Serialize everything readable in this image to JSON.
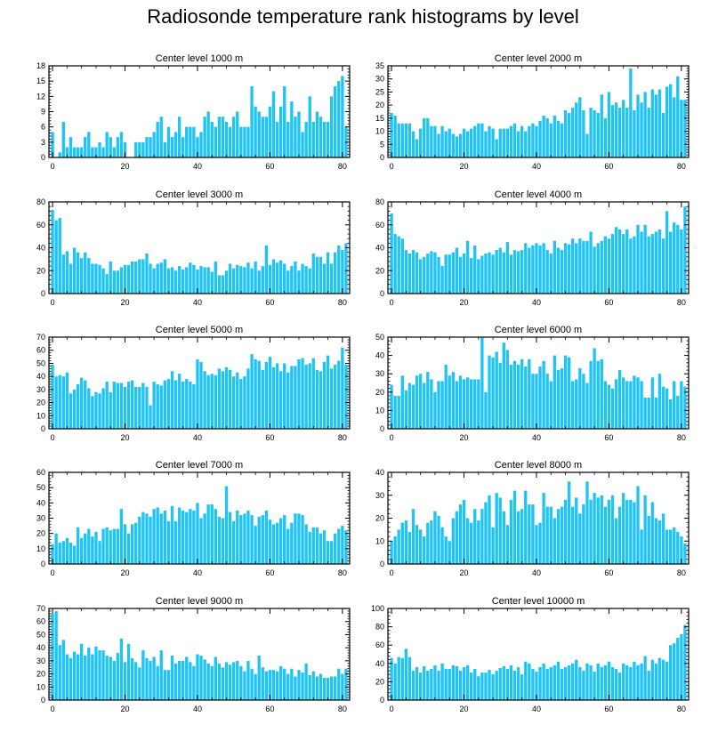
{
  "page_title": "Radiosonde temperature rank histograms by level",
  "colors": {
    "bar": "#1FC3F5",
    "axis": "#000000"
  },
  "chart_data": [
    {
      "type": "bar",
      "title": "Center level 1000 m",
      "xlim": [
        -1,
        82
      ],
      "ylim": [
        0,
        18
      ],
      "xticks": [
        0,
        20,
        40,
        60,
        80
      ],
      "yticks": [
        0,
        3,
        6,
        9,
        12,
        15,
        18
      ],
      "values": [
        5,
        0,
        1,
        7,
        2,
        4,
        2,
        2,
        2,
        4,
        5,
        2,
        2,
        3,
        2,
        5,
        4,
        2,
        4,
        5,
        3,
        0,
        0,
        3,
        3,
        3,
        4,
        4,
        5,
        7,
        8,
        3,
        6,
        4,
        5,
        8,
        4,
        6,
        6,
        6,
        4,
        5,
        8,
        9,
        7,
        6,
        8,
        8,
        7,
        6,
        8,
        9,
        6,
        6,
        6,
        14,
        10,
        9,
        8,
        8,
        10,
        13,
        7,
        10,
        14,
        7,
        11,
        8,
        9,
        5,
        7,
        12,
        7,
        9,
        8,
        7,
        7,
        12,
        14,
        15,
        16,
        6
      ]
    },
    {
      "type": "bar",
      "title": "Center level 2000 m",
      "xlim": [
        -1,
        82
      ],
      "ylim": [
        0,
        35
      ],
      "xticks": [
        0,
        20,
        40,
        60,
        80
      ],
      "yticks": [
        0,
        5,
        10,
        15,
        20,
        25,
        30,
        35
      ],
      "values": [
        17,
        16,
        13,
        13,
        13,
        13,
        10,
        7,
        11,
        15,
        15,
        12,
        12,
        9,
        12,
        10,
        11,
        9,
        8,
        9,
        11,
        10,
        11,
        12,
        13,
        13,
        10,
        12,
        11,
        7,
        11,
        11,
        11,
        12,
        13,
        10,
        12,
        10,
        12,
        13,
        12,
        14,
        16,
        15,
        13,
        16,
        14,
        13,
        18,
        17,
        19,
        21,
        23,
        18,
        9,
        19,
        18,
        17,
        24,
        15,
        25,
        20,
        21,
        19,
        22,
        19,
        34,
        18,
        24,
        21,
        25,
        19,
        26,
        24,
        26,
        17,
        27,
        28,
        23,
        31,
        22,
        22
      ]
    },
    {
      "type": "bar",
      "title": "Center level 3000 m",
      "xlim": [
        -1,
        82
      ],
      "ylim": [
        0,
        80
      ],
      "xticks": [
        0,
        20,
        40,
        60,
        80
      ],
      "yticks": [
        0,
        20,
        40,
        60,
        80
      ],
      "values": [
        73,
        64,
        66,
        34,
        37,
        26,
        40,
        36,
        31,
        36,
        31,
        26,
        26,
        25,
        22,
        17,
        28,
        20,
        20,
        23,
        25,
        25,
        28,
        28,
        30,
        30,
        35,
        26,
        22,
        26,
        27,
        30,
        22,
        23,
        20,
        24,
        21,
        23,
        27,
        25,
        21,
        24,
        23,
        23,
        19,
        28,
        16,
        16,
        20,
        26,
        22,
        25,
        24,
        23,
        27,
        22,
        28,
        20,
        24,
        42,
        25,
        30,
        27,
        29,
        26,
        20,
        24,
        28,
        20,
        26,
        24,
        22,
        35,
        32,
        32,
        26,
        36,
        26,
        36,
        42,
        38,
        44
      ]
    },
    {
      "type": "bar",
      "title": "Center level 4000 m",
      "xlim": [
        -1,
        82
      ],
      "ylim": [
        0,
        80
      ],
      "xticks": [
        0,
        20,
        40,
        60,
        80
      ],
      "yticks": [
        0,
        20,
        40,
        60,
        80
      ],
      "values": [
        70,
        52,
        50,
        48,
        38,
        35,
        38,
        36,
        30,
        32,
        35,
        37,
        36,
        32,
        24,
        34,
        34,
        36,
        40,
        32,
        35,
        46,
        31,
        42,
        30,
        33,
        35,
        36,
        34,
        38,
        40,
        36,
        45,
        34,
        38,
        37,
        38,
        44,
        40,
        42,
        44,
        42,
        44,
        38,
        35,
        46,
        40,
        38,
        44,
        43,
        48,
        44,
        48,
        46,
        46,
        54,
        41,
        44,
        46,
        50,
        48,
        52,
        58,
        56,
        52,
        56,
        48,
        50,
        60,
        54,
        60,
        50,
        52,
        54,
        56,
        48,
        72,
        54,
        62,
        60,
        56,
        76
      ]
    },
    {
      "type": "bar",
      "title": "Center level 5000 m",
      "xlim": [
        -1,
        82
      ],
      "ylim": [
        0,
        70
      ],
      "xticks": [
        0,
        20,
        40,
        60,
        80
      ],
      "yticks": [
        0,
        10,
        20,
        30,
        40,
        50,
        60,
        70
      ],
      "values": [
        49,
        40,
        41,
        40,
        43,
        27,
        30,
        34,
        39,
        37,
        31,
        25,
        28,
        27,
        31,
        36,
        28,
        36,
        35,
        35,
        32,
        36,
        37,
        32,
        32,
        35,
        32,
        18,
        36,
        34,
        33,
        37,
        38,
        44,
        37,
        42,
        36,
        38,
        36,
        34,
        53,
        51,
        44,
        41,
        42,
        41,
        46,
        44,
        47,
        45,
        40,
        43,
        38,
        40,
        46,
        57,
        53,
        52,
        45,
        51,
        55,
        47,
        50,
        44,
        50,
        43,
        48,
        48,
        53,
        54,
        49,
        50,
        54,
        45,
        44,
        51,
        56,
        46,
        49,
        52,
        62,
        49
      ]
    },
    {
      "type": "bar",
      "title": "Center level 6000 m",
      "xlim": [
        -1,
        82
      ],
      "ylim": [
        0,
        50
      ],
      "xticks": [
        0,
        20,
        40,
        60,
        80
      ],
      "yticks": [
        0,
        10,
        20,
        30,
        40,
        50
      ],
      "values": [
        24,
        18,
        18,
        29,
        21,
        25,
        24,
        29,
        30,
        25,
        31,
        27,
        20,
        26,
        26,
        35,
        29,
        31,
        26,
        29,
        27,
        28,
        27,
        27,
        27,
        50,
        20,
        40,
        39,
        42,
        36,
        47,
        43,
        35,
        37,
        35,
        38,
        34,
        38,
        30,
        30,
        34,
        37,
        30,
        26,
        40,
        32,
        33,
        40,
        39,
        26,
        27,
        33,
        30,
        25,
        37,
        44,
        37,
        38,
        26,
        24,
        22,
        27,
        32,
        28,
        26,
        26,
        29,
        28,
        26,
        17,
        17,
        28,
        17,
        30,
        23,
        22,
        16,
        26,
        18,
        26,
        23
      ]
    },
    {
      "type": "bar",
      "title": "Center level 7000 m",
      "xlim": [
        -1,
        82
      ],
      "ylim": [
        0,
        60
      ],
      "xticks": [
        0,
        20,
        40,
        60,
        80
      ],
      "yticks": [
        0,
        10,
        20,
        30,
        40,
        50,
        60
      ],
      "values": [
        13,
        20,
        14,
        15,
        17,
        14,
        12,
        24,
        17,
        20,
        23,
        18,
        21,
        15,
        23,
        24,
        22,
        23,
        23,
        36,
        26,
        20,
        26,
        27,
        31,
        34,
        33,
        31,
        36,
        37,
        33,
        35,
        28,
        38,
        28,
        37,
        35,
        34,
        36,
        35,
        40,
        30,
        33,
        39,
        39,
        36,
        31,
        30,
        51,
        34,
        28,
        35,
        32,
        33,
        35,
        32,
        25,
        31,
        32,
        35,
        29,
        26,
        27,
        30,
        32,
        23,
        27,
        33,
        33,
        32,
        26,
        21,
        24,
        24,
        20,
        22,
        15,
        15,
        20,
        23,
        25,
        22
      ]
    },
    {
      "type": "bar",
      "title": "Center level 8000 m",
      "xlim": [
        -1,
        82
      ],
      "ylim": [
        0,
        40
      ],
      "xticks": [
        0,
        20,
        40,
        60,
        80
      ],
      "yticks": [
        0,
        10,
        20,
        30,
        40
      ],
      "values": [
        10,
        12,
        15,
        18,
        19,
        14,
        24,
        17,
        15,
        12,
        18,
        19,
        23,
        21,
        16,
        12,
        10,
        20,
        23,
        26,
        28,
        20,
        18,
        24,
        19,
        24,
        27,
        30,
        16,
        31,
        29,
        23,
        17,
        28,
        32,
        23,
        24,
        32,
        26,
        26,
        17,
        18,
        31,
        25,
        25,
        20,
        24,
        25,
        28,
        36,
        25,
        29,
        22,
        26,
        36,
        28,
        31,
        29,
        30,
        25,
        28,
        30,
        20,
        25,
        31,
        28,
        28,
        27,
        34,
        15,
        30,
        21,
        27,
        20,
        19,
        22,
        15,
        15,
        16,
        14,
        12,
        9
      ]
    },
    {
      "type": "bar",
      "title": "Center level 9000 m",
      "xlim": [
        -1,
        82
      ],
      "ylim": [
        0,
        70
      ],
      "xticks": [
        0,
        20,
        40,
        60,
        80
      ],
      "yticks": [
        0,
        10,
        20,
        30,
        40,
        50,
        60,
        70
      ],
      "values": [
        66,
        68,
        42,
        46,
        35,
        32,
        37,
        35,
        43,
        34,
        40,
        35,
        41,
        38,
        38,
        34,
        33,
        30,
        36,
        47,
        29,
        43,
        32,
        29,
        25,
        38,
        32,
        30,
        33,
        26,
        38,
        23,
        23,
        34,
        28,
        30,
        30,
        33,
        29,
        26,
        35,
        34,
        31,
        28,
        26,
        33,
        28,
        25,
        29,
        27,
        29,
        30,
        26,
        22,
        30,
        24,
        20,
        34,
        25,
        22,
        23,
        23,
        22,
        26,
        24,
        20,
        24,
        18,
        23,
        21,
        28,
        19,
        22,
        18,
        20,
        17,
        17,
        18,
        18,
        24,
        20,
        24
      ]
    },
    {
      "type": "bar",
      "title": "Center level 10000 m",
      "xlim": [
        -1,
        82
      ],
      "ylim": [
        0,
        100
      ],
      "xticks": [
        0,
        20,
        40,
        60,
        80
      ],
      "yticks": [
        0,
        20,
        40,
        60,
        80,
        100
      ],
      "values": [
        46,
        40,
        47,
        46,
        56,
        47,
        32,
        36,
        30,
        37,
        32,
        34,
        38,
        32,
        40,
        34,
        34,
        38,
        37,
        32,
        36,
        38,
        30,
        34,
        26,
        30,
        30,
        33,
        28,
        32,
        35,
        37,
        34,
        38,
        32,
        36,
        28,
        42,
        40,
        34,
        31,
        36,
        40,
        34,
        36,
        38,
        42,
        34,
        36,
        38,
        40,
        44,
        36,
        32,
        40,
        38,
        31,
        40,
        36,
        38,
        42,
        36,
        34,
        30,
        40,
        38,
        36,
        42,
        38,
        40,
        48,
        32,
        44,
        40,
        46,
        44,
        42,
        60,
        62,
        68,
        72,
        82
      ]
    }
  ]
}
